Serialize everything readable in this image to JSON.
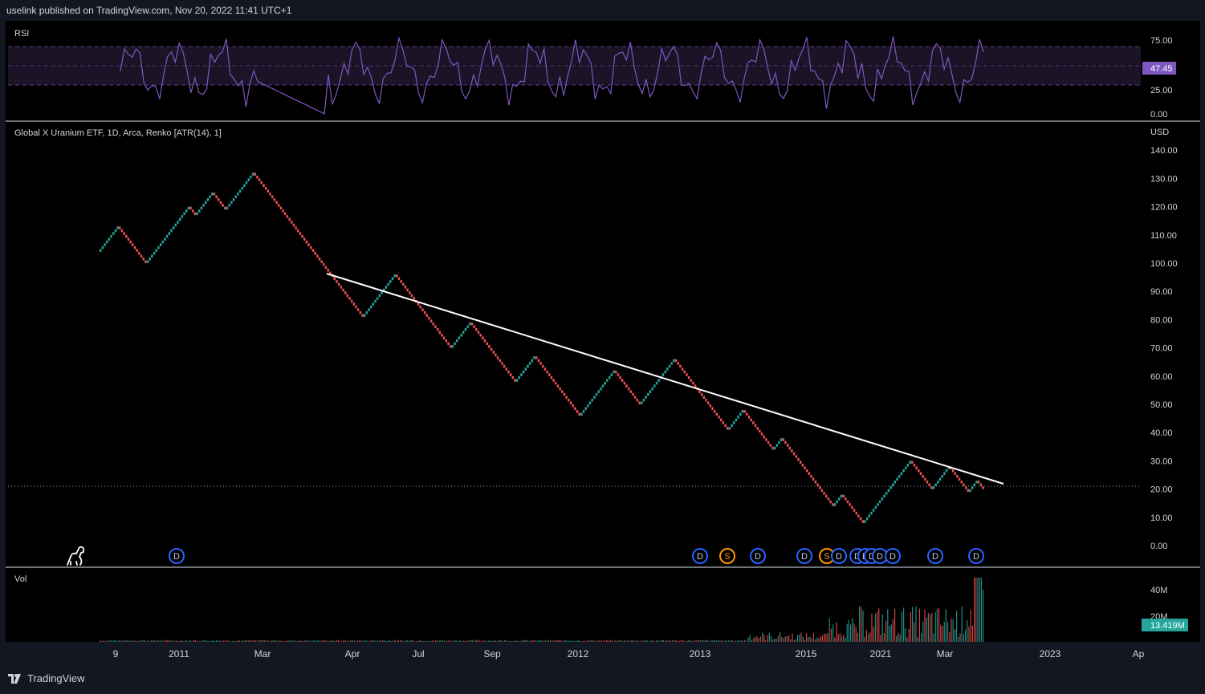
{
  "header": {
    "published": "uselink published on TradingView.com, Nov 20, 2022 11:41 UTC+1"
  },
  "footer": {
    "brand": "TradingView"
  },
  "rsi": {
    "label": "RSI",
    "ticks": [
      "75.00",
      "25.00",
      "0.00"
    ],
    "current": "47.45",
    "line_color": "#7e57c2",
    "band_color": "#1b1326"
  },
  "main": {
    "label": "Global X Uranium ETF, 1D, Arca, Renko [ATR(14), 1]",
    "currency": "USD",
    "y_ticks": [
      "140.00",
      "130.00",
      "120.00",
      "110.00",
      "100.00",
      "90.00",
      "80.00",
      "70.00",
      "60.00",
      "50.00",
      "40.00",
      "30.00",
      "20.00",
      "10.00",
      "0.00"
    ],
    "up_color": "#26a69a",
    "down_color": "#ef5350",
    "trendline_color": "#ffffff"
  },
  "volume": {
    "label": "Vol",
    "ticks": [
      "40M",
      "20M"
    ],
    "current": "13.419M"
  },
  "x_axis": [
    "9",
    "2011",
    "Mar",
    "Apr",
    "Jul",
    "Sep",
    "2012",
    "2013",
    "2015",
    "2021",
    "Mar",
    "2023",
    "Ap"
  ],
  "markers": [
    {
      "type": "D"
    },
    {
      "type": "D"
    },
    {
      "type": "S"
    },
    {
      "type": "D"
    },
    {
      "type": "D"
    },
    {
      "type": "S"
    },
    {
      "type": "D"
    },
    {
      "type": "D"
    },
    {
      "type": "D"
    },
    {
      "type": "D"
    },
    {
      "type": "D"
    },
    {
      "type": "D"
    },
    {
      "type": "D"
    },
    {
      "type": "D"
    }
  ],
  "chart_data": {
    "type": "line",
    "series": [
      {
        "values": [
          104,
          113,
          100,
          120,
          117,
          125,
          119,
          132,
          81,
          96,
          88,
          70,
          79,
          58,
          67,
          46,
          62,
          50,
          66,
          41,
          48,
          34,
          38,
          23,
          18,
          14,
          18,
          12,
          8,
          22,
          30,
          20,
          28,
          19,
          23,
          20
        ]
      }
    ],
    "ylim": [
      0,
      145
    ]
  }
}
